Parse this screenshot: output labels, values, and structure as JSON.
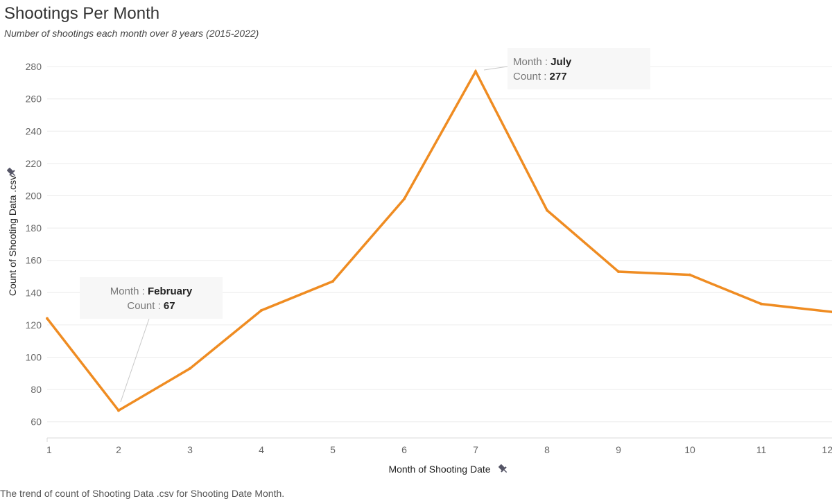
{
  "chart_data": {
    "type": "line",
    "title": "Shootings Per Month",
    "subtitle": "Number of shootings each month over 8 years (2015-2022)",
    "xlabel": "Month of Shooting Date",
    "ylabel": "Count of Shooting Data .csv",
    "x": [
      1,
      2,
      3,
      4,
      5,
      6,
      7,
      8,
      9,
      10,
      11,
      12
    ],
    "xticks": [
      "1",
      "2",
      "3",
      "4",
      "5",
      "6",
      "7",
      "8",
      "9",
      "10",
      "11",
      "12"
    ],
    "values": [
      124,
      67,
      93,
      129,
      147,
      198,
      277,
      191,
      153,
      151,
      133,
      128
    ],
    "ylim": [
      50,
      285
    ],
    "yticks": [
      60,
      80,
      100,
      120,
      140,
      160,
      180,
      200,
      220,
      240,
      260,
      280
    ],
    "line_color": "#ef8c22",
    "grid": true,
    "annotations": [
      {
        "month_key": "Month : ",
        "month_val": "February",
        "count_key": "Count : ",
        "count_val": "67",
        "x": 2,
        "y": 67
      },
      {
        "month_key": "Month : ",
        "month_val": "July",
        "count_key": "Count : ",
        "count_val": "277",
        "x": 7,
        "y": 277
      }
    ],
    "caption": "The trend of count of Shooting Data .csv for Shooting Date Month."
  }
}
